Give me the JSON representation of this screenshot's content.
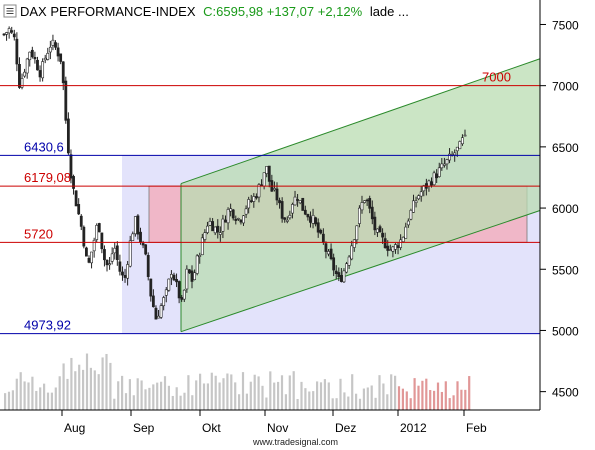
{
  "chart_data": {
    "type": "candlestick",
    "title": {
      "name": "DAX PERFORMANCE-INDEX",
      "quote": "C:6595,98 +137,07 +2,12%",
      "status": "lade ..."
    },
    "source": "www.tradesignal.com",
    "y_axis": {
      "range": [
        4350,
        7700
      ],
      "ticks": [
        7500,
        7000,
        6500,
        6000,
        5500,
        5000,
        4500
      ],
      "side": "right"
    },
    "x_axis": {
      "ticks": [
        "Aug",
        "Sep",
        "Okt",
        "Nov",
        "Dez",
        "2012",
        "Feb"
      ]
    },
    "levels": [
      {
        "label": "7000",
        "value": 7000,
        "color": "#cc0000"
      },
      {
        "label": "6430,6",
        "value": 6430.6,
        "color": "#0000aa"
      },
      {
        "label": "6179,08",
        "value": 6179.08,
        "color": "#cc0000"
      },
      {
        "label": "5720",
        "value": 5720,
        "color": "#cc0000"
      },
      {
        "label": "4973,92",
        "value": 4973.92,
        "color": "#0000aa"
      }
    ],
    "zones": {
      "blue_box": {
        "y_range": [
          4973.92,
          6430.6
        ],
        "color": "#e3e3fb"
      },
      "red_box": {
        "y_range": [
          5720,
          6179.08
        ],
        "color": "#f0b7c8"
      },
      "trend_channel": {
        "upper": {
          "from": 6200,
          "to": 7220
        },
        "lower": {
          "from": 4990,
          "to": 5980
        },
        "color": "#b9dcb1"
      }
    },
    "price_path": [
      7420,
      7460,
      7380,
      7000,
      7150,
      7300,
      7200,
      7100,
      7250,
      7350,
      7300,
      7200,
      6600,
      6200,
      6000,
      5800,
      5500,
      5700,
      5900,
      5600,
      5500,
      5700,
      5500,
      5400,
      5700,
      5900,
      5750,
      5600,
      5300,
      5100,
      5200,
      5300,
      5500,
      5350,
      5200,
      5500,
      5400,
      5600,
      5750,
      5900,
      5850,
      5800,
      5900,
      6000,
      5950,
      5900,
      6000,
      6050,
      6100,
      6200,
      6350,
      6150,
      6100,
      5950,
      5900,
      6050,
      6100,
      6000,
      5950,
      5900,
      5800,
      5700,
      5600,
      5500,
      5400,
      5500,
      5650,
      5800,
      6000,
      6100,
      5950,
      5800,
      5750,
      5700,
      5650,
      5700,
      5750,
      5900,
      6000,
      6100,
      6150,
      6200,
      6250,
      6300,
      6350,
      6400,
      6450,
      6500,
      6595.98
    ],
    "colors": {
      "up": "#ffffff",
      "down": "#222222",
      "volume": "#c6c6c6",
      "volume_recent": "#e19797",
      "axis": "#000000"
    }
  }
}
